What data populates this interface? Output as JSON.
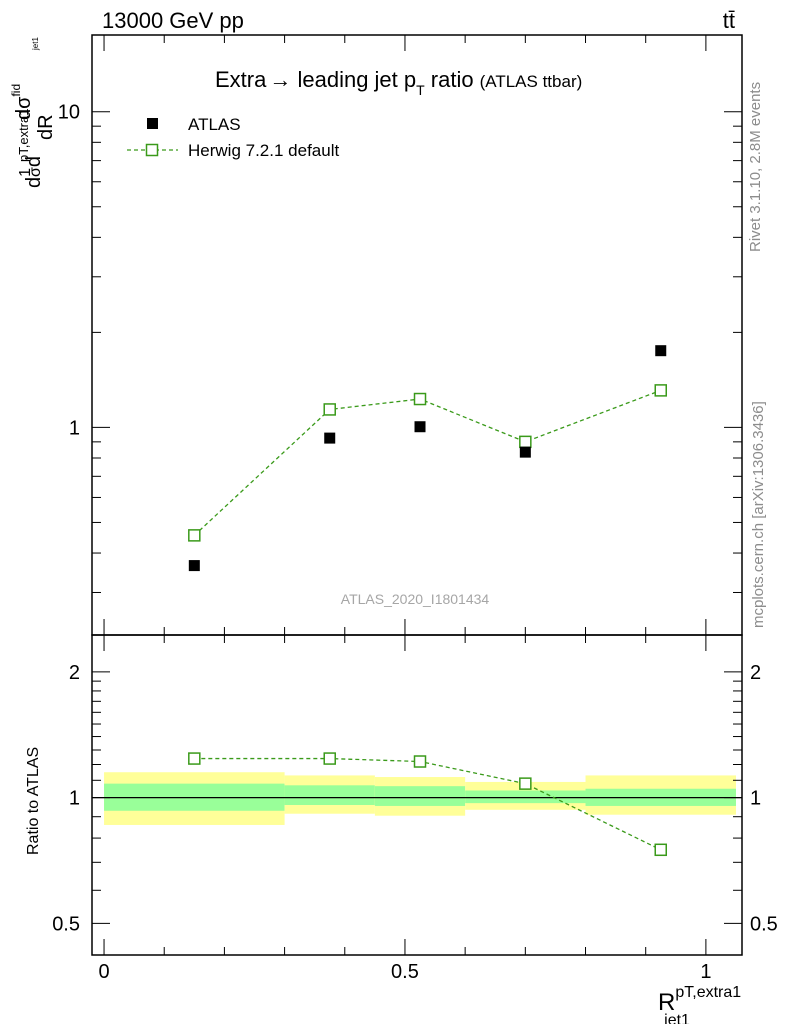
{
  "header": {
    "left": "13000 GeV pp",
    "right": "tt̄"
  },
  "side_labels": {
    "version": "Rivet 3.1.10,  2.8M events",
    "source": "mcplots.cern.ch [arXiv:1306.3436]"
  },
  "watermark": "ATLAS_2020_I1801434",
  "chart_data": {
    "type": "scatter",
    "title": "Extra → leading jet pT ratio",
    "title_parts": {
      "main": "Extra",
      "arrow": "→",
      "mid": " leading jet p",
      "sub": "T",
      "after": " ratio",
      "note": "(ATLAS ttbar)"
    },
    "xlabel": {
      "main": "R",
      "sup": "pT,extra1",
      "sub": "jet1"
    },
    "ylabel": {
      "prefix": "d",
      "frac1_num": "1",
      "frac1_den": "σ",
      "mid": "d",
      "frac2_num_main": "dσ",
      "frac2_num_sup": "fid",
      "frac2_num_sub": "pT,extra1",
      "frac2_num_subsub": "jet1",
      "frac2_den": "dR"
    },
    "xlim": [
      -0.02,
      1.06
    ],
    "ylim": [
      0.22,
      17.5
    ],
    "yscale": "log",
    "x_ticks": [
      0,
      0.5,
      1
    ],
    "x_tick_labels": [
      "0",
      "0.5",
      "1"
    ],
    "y_ticks": [
      1,
      10
    ],
    "y_tick_labels": [
      "1",
      "10"
    ],
    "legend_position": "top-left",
    "series": [
      {
        "name": "ATLAS",
        "marker": "filled-square",
        "color": "#000000",
        "x": [
          0.15,
          0.375,
          0.525,
          0.7,
          0.925
        ],
        "y": [
          0.365,
          0.925,
          1.005,
          0.835,
          1.75
        ],
        "bins": [
          [
            0.0,
            0.3
          ],
          [
            0.3,
            0.45
          ],
          [
            0.45,
            0.6
          ],
          [
            0.6,
            0.8
          ],
          [
            0.8,
            1.05
          ]
        ]
      },
      {
        "name": "Herwig 7.2.1 default",
        "marker": "open-square",
        "line": "dashed",
        "color": "#3a9a1a",
        "x": [
          0.15,
          0.375,
          0.525,
          0.7,
          0.925
        ],
        "y": [
          0.455,
          1.14,
          1.23,
          0.9,
          1.31
        ]
      }
    ],
    "ratio": {
      "ylabel": "Ratio to ATLAS",
      "ylim": [
        0.42,
        2.45
      ],
      "yscale": "log",
      "y_ticks": [
        0.5,
        1,
        2
      ],
      "y_tick_labels": [
        "0.5",
        "1",
        "2"
      ],
      "x": [
        0.15,
        0.375,
        0.525,
        0.7,
        0.925
      ],
      "mc_ratio": [
        1.24,
        1.24,
        1.22,
        1.08,
        0.75
      ],
      "bins": [
        [
          0.0,
          0.3
        ],
        [
          0.3,
          0.45
        ],
        [
          0.45,
          0.6
        ],
        [
          0.6,
          0.8
        ],
        [
          0.8,
          1.05
        ]
      ],
      "stat_band": [
        [
          0.93,
          1.08
        ],
        [
          0.96,
          1.07
        ],
        [
          0.955,
          1.065
        ],
        [
          0.97,
          1.04
        ],
        [
          0.955,
          1.05
        ]
      ],
      "total_band": [
        [
          0.86,
          1.15
        ],
        [
          0.915,
          1.13
        ],
        [
          0.905,
          1.12
        ],
        [
          0.935,
          1.09
        ],
        [
          0.91,
          1.13
        ]
      ],
      "stat_color": "#99ff99",
      "total_color": "#ffff99"
    }
  }
}
